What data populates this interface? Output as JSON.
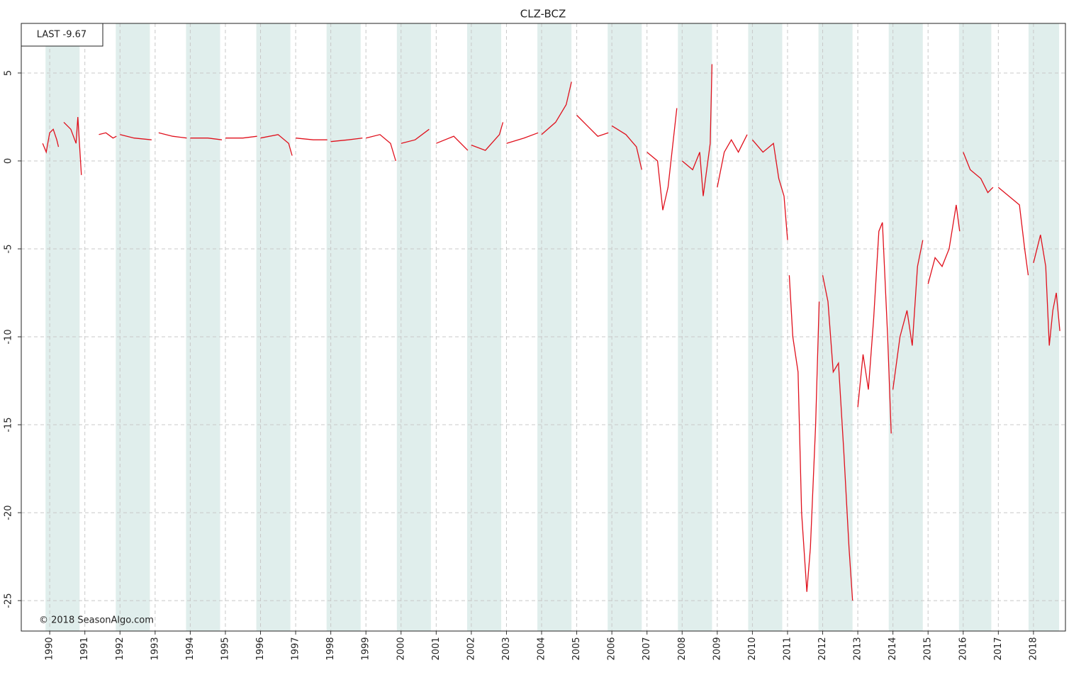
{
  "chart_data": {
    "type": "line",
    "title": "CLZ-BCZ",
    "annotations": [
      "LAST -9.67",
      "© 2018 SeasonAlgo.com"
    ],
    "color": "#e0101c",
    "band_color": "#e0eeec",
    "grid": true,
    "xlim": [
      1989.19,
      2018.91
    ],
    "ylim": [
      -26.73,
      7.82
    ],
    "xticks": [
      1990,
      1991,
      1992,
      1993,
      1994,
      1995,
      1996,
      1997,
      1998,
      1999,
      2000,
      2001,
      2002,
      2003,
      2004,
      2005,
      2006,
      2007,
      2008,
      2009,
      2010,
      2011,
      2012,
      2013,
      2014,
      2015,
      2016,
      2017,
      2018
    ],
    "yticks": [
      5,
      0,
      -5,
      -10,
      -15,
      -20,
      -25
    ],
    "shaded_bands": [
      [
        1989.88,
        1990.85
      ],
      [
        1991.88,
        1992.85
      ],
      [
        1993.88,
        1994.85
      ],
      [
        1995.88,
        1996.85
      ],
      [
        1997.88,
        1998.85
      ],
      [
        1999.88,
        2000.85
      ],
      [
        2001.88,
        2002.85
      ],
      [
        2003.88,
        2004.85
      ],
      [
        2005.88,
        2006.85
      ],
      [
        2007.88,
        2008.85
      ],
      [
        2009.88,
        2010.85
      ],
      [
        2011.88,
        2012.85
      ],
      [
        2013.88,
        2014.85
      ],
      [
        2015.88,
        2016.8
      ],
      [
        2017.86,
        2018.73
      ]
    ],
    "x": [
      1989.8,
      1989.9,
      1990.0,
      1990.1,
      1990.2,
      1990.25,
      null,
      1990.4,
      1990.6,
      1990.75,
      1990.8,
      1990.9,
      null,
      1991.4,
      1991.6,
      1991.8,
      1991.9,
      null,
      1992.0,
      1992.4,
      1992.9,
      null,
      1993.1,
      1993.5,
      1993.9,
      null,
      1994.0,
      1994.5,
      1994.9,
      null,
      1995.0,
      1995.5,
      1995.9,
      null,
      1996.0,
      1996.5,
      1996.8,
      1996.9,
      null,
      1997.0,
      1997.5,
      1997.9,
      null,
      1998.0,
      1998.5,
      1998.9,
      null,
      1999.0,
      1999.4,
      1999.7,
      1999.85,
      null,
      2000.0,
      2000.4,
      2000.8,
      null,
      2001.0,
      2001.5,
      2001.9,
      null,
      2002.0,
      2002.4,
      2002.8,
      2002.9,
      null,
      2003.0,
      2003.5,
      2003.9,
      null,
      2004.0,
      2004.4,
      2004.7,
      2004.85,
      null,
      2005.0,
      2005.3,
      2005.6,
      2005.9,
      null,
      2006.0,
      2006.4,
      2006.7,
      2006.85,
      null,
      2007.0,
      2007.3,
      2007.45,
      2007.6,
      2007.85,
      null,
      2008.0,
      2008.3,
      2008.5,
      2008.6,
      2008.8,
      2008.85,
      null,
      2009.0,
      2009.2,
      2009.4,
      2009.6,
      2009.85,
      null,
      2010.0,
      2010.3,
      2010.6,
      2010.75,
      2010.9,
      2011.0,
      null,
      2011.05,
      2011.15,
      2011.3,
      2011.4,
      2011.55,
      2011.65,
      2011.8,
      2011.9,
      null,
      2012.0,
      2012.15,
      2012.3,
      2012.45,
      2012.6,
      2012.75,
      2012.85,
      null,
      2013.0,
      2013.15,
      2013.3,
      2013.45,
      2013.6,
      2013.7,
      2013.85,
      2013.95,
      null,
      2014.0,
      2014.2,
      2014.4,
      2014.55,
      2014.7,
      2014.85,
      null,
      2015.0,
      2015.2,
      2015.4,
      2015.6,
      2015.8,
      2015.9,
      null,
      2016.0,
      2016.2,
      2016.5,
      2016.7,
      2016.85,
      null,
      2017.0,
      2017.3,
      2017.6,
      2017.75,
      2017.85,
      null,
      2018.0,
      2018.2,
      2018.35,
      2018.45,
      2018.55,
      2018.65,
      2018.75
    ],
    "values": [
      1.0,
      0.5,
      1.6,
      1.8,
      1.2,
      0.8,
      null,
      2.2,
      1.8,
      1.0,
      2.5,
      -0.8,
      null,
      1.5,
      1.6,
      1.3,
      1.4,
      null,
      1.5,
      1.3,
      1.2,
      null,
      1.6,
      1.4,
      1.3,
      null,
      1.3,
      1.3,
      1.2,
      null,
      1.3,
      1.3,
      1.4,
      null,
      1.3,
      1.5,
      1.0,
      0.3,
      null,
      1.3,
      1.2,
      1.2,
      null,
      1.1,
      1.2,
      1.3,
      null,
      1.3,
      1.5,
      1.0,
      0.0,
      null,
      1.0,
      1.2,
      1.8,
      null,
      1.0,
      1.4,
      0.6,
      null,
      0.9,
      0.6,
      1.5,
      2.2,
      null,
      1.0,
      1.3,
      1.6,
      null,
      1.5,
      2.2,
      3.2,
      4.5,
      null,
      2.6,
      2.0,
      1.4,
      1.6,
      null,
      2.0,
      1.5,
      0.8,
      -0.5,
      null,
      0.5,
      0.0,
      -2.8,
      -1.5,
      3.0,
      null,
      0.0,
      -0.5,
      0.5,
      -2.0,
      1.0,
      5.5,
      null,
      -1.5,
      0.5,
      1.2,
      0.5,
      1.5,
      null,
      1.2,
      0.5,
      1.0,
      -1.0,
      -2.0,
      -4.5,
      null,
      -6.5,
      -10.0,
      -12.0,
      -20.0,
      -24.5,
      -22.0,
      -15.0,
      -8.0,
      null,
      -6.5,
      -8.0,
      -12.0,
      -11.5,
      -16.5,
      -22.0,
      -25.0,
      null,
      -14.0,
      -11.0,
      -13.0,
      -9.0,
      -4.0,
      -3.5,
      -10.0,
      -15.5,
      null,
      -13.0,
      -10.0,
      -8.5,
      -10.5,
      -6.0,
      -4.5,
      null,
      -7.0,
      -5.5,
      -6.0,
      -5.0,
      -2.5,
      -4.0,
      null,
      0.5,
      -0.5,
      -1.0,
      -1.8,
      -1.5,
      null,
      -1.5,
      -2.0,
      -2.5,
      -5.0,
      -6.5,
      null,
      -5.8,
      -4.2,
      -6.0,
      -10.5,
      -8.5,
      -7.5,
      -9.67
    ]
  }
}
